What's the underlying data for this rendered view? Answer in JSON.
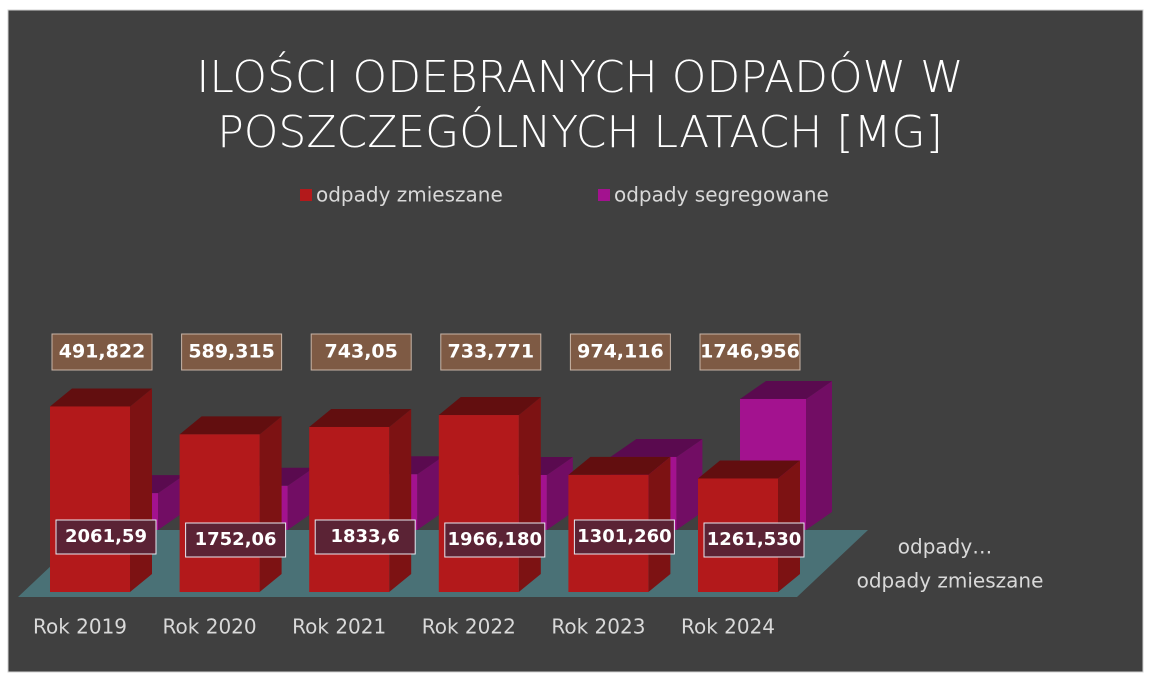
{
  "chart_data": {
    "type": "bar3d",
    "title": [
      "ILOŚCI ODEBRANYCH ODPADÓW W",
      "POSZCZEGÓLNYCH LATACH [MG]"
    ],
    "categories": [
      "Rok 2019",
      "Rok 2020",
      "Rok 2021",
      "Rok 2022",
      "Rok 2023",
      "Rok 2024"
    ],
    "series": [
      {
        "name": "odpady zmieszane",
        "color": "#b3191b",
        "values": [
          2061.59,
          1752.06,
          1833.6,
          1966.18,
          1301.26,
          1261.53
        ],
        "value_labels": [
          "2061,59",
          "1752,06",
          "1833,6",
          "1966,180",
          "1301,260",
          "1261,530"
        ]
      },
      {
        "name": "odpady segregowane",
        "color": "#a3128f",
        "values": [
          491.822,
          589.315,
          743.05,
          733.771,
          974.116,
          1746.956
        ],
        "value_labels": [
          "491,822",
          "589,315",
          "743,05",
          "733,771",
          "974,116",
          "1746,956"
        ]
      }
    ],
    "depth_labels": [
      "odpady…",
      "odpady zmieszane"
    ],
    "legend": "top"
  }
}
